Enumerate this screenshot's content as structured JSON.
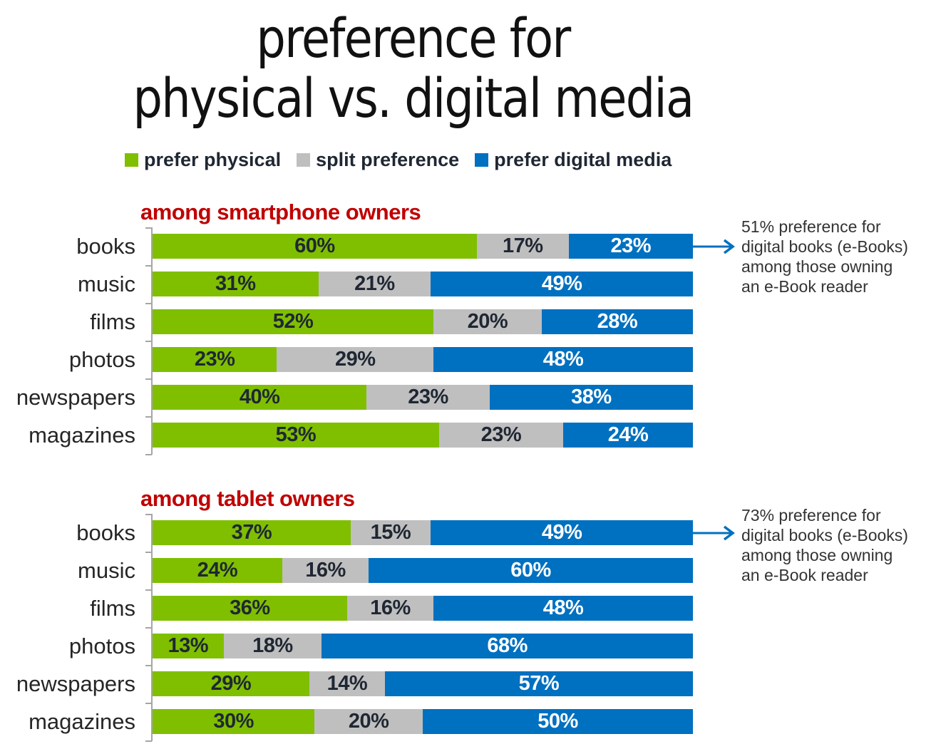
{
  "title": {
    "line1": "preference for",
    "line2": "physical vs. digital media"
  },
  "legend": [
    {
      "label": "prefer physical",
      "color": "#7fbf00"
    },
    {
      "label": "split preference",
      "color": "#bfbfbf"
    },
    {
      "label": "prefer digital media",
      "color": "#0070c0"
    }
  ],
  "sections": [
    {
      "title": "among smartphone owners",
      "note": [
        "51% preference for",
        "digital books (e-Books)",
        "among those owning",
        "an e-Book reader"
      ]
    },
    {
      "title": "among tablet owners",
      "note": [
        "73% preference for",
        "digital books (e-Books)",
        "among those owning",
        "an e-Book reader"
      ]
    }
  ],
  "chart_data": [
    {
      "type": "bar",
      "orientation": "horizontal",
      "stacked": true,
      "title": "among smartphone owners",
      "categories": [
        "books",
        "music",
        "films",
        "photos",
        "newspapers",
        "magazines"
      ],
      "series": [
        {
          "name": "prefer physical",
          "color": "#7fbf00",
          "values": [
            60,
            31,
            52,
            23,
            40,
            53
          ]
        },
        {
          "name": "split preference",
          "color": "#bfbfbf",
          "values": [
            17,
            21,
            20,
            29,
            23,
            23
          ]
        },
        {
          "name": "prefer digital media",
          "color": "#0070c0",
          "values": [
            23,
            49,
            28,
            48,
            38,
            24
          ]
        }
      ],
      "value_labels": [
        [
          "60%",
          "17%",
          "23%"
        ],
        [
          "31%",
          "21%",
          "49%"
        ],
        [
          "52%",
          "20%",
          "28%"
        ],
        [
          "23%",
          "29%",
          "48%"
        ],
        [
          "40%",
          "23%",
          "38%"
        ],
        [
          "53%",
          "23%",
          "24%"
        ]
      ],
      "annotation": "51% preference for digital books (e-Books) among those owning an e-Book reader",
      "xlim": [
        0,
        100
      ],
      "grid": false,
      "legend_position": "top"
    },
    {
      "type": "bar",
      "orientation": "horizontal",
      "stacked": true,
      "title": "among tablet owners",
      "categories": [
        "books",
        "music",
        "films",
        "photos",
        "newspapers",
        "magazines"
      ],
      "series": [
        {
          "name": "prefer physical",
          "color": "#7fbf00",
          "values": [
            37,
            24,
            36,
            13,
            29,
            30
          ]
        },
        {
          "name": "split preference",
          "color": "#bfbfbf",
          "values": [
            15,
            16,
            16,
            18,
            14,
            20
          ]
        },
        {
          "name": "prefer digital media",
          "color": "#0070c0",
          "values": [
            49,
            60,
            48,
            68,
            57,
            50
          ]
        }
      ],
      "value_labels": [
        [
          "37%",
          "15%",
          "49%"
        ],
        [
          "24%",
          "16%",
          "60%"
        ],
        [
          "36%",
          "16%",
          "48%"
        ],
        [
          "13%",
          "18%",
          "68%"
        ],
        [
          "29%",
          "14%",
          "57%"
        ],
        [
          "30%",
          "20%",
          "50%"
        ]
      ],
      "annotation": "73% preference for digital books (e-Books) among those owning an e-Book reader",
      "xlim": [
        0,
        100
      ],
      "grid": false,
      "legend_position": "top"
    }
  ]
}
